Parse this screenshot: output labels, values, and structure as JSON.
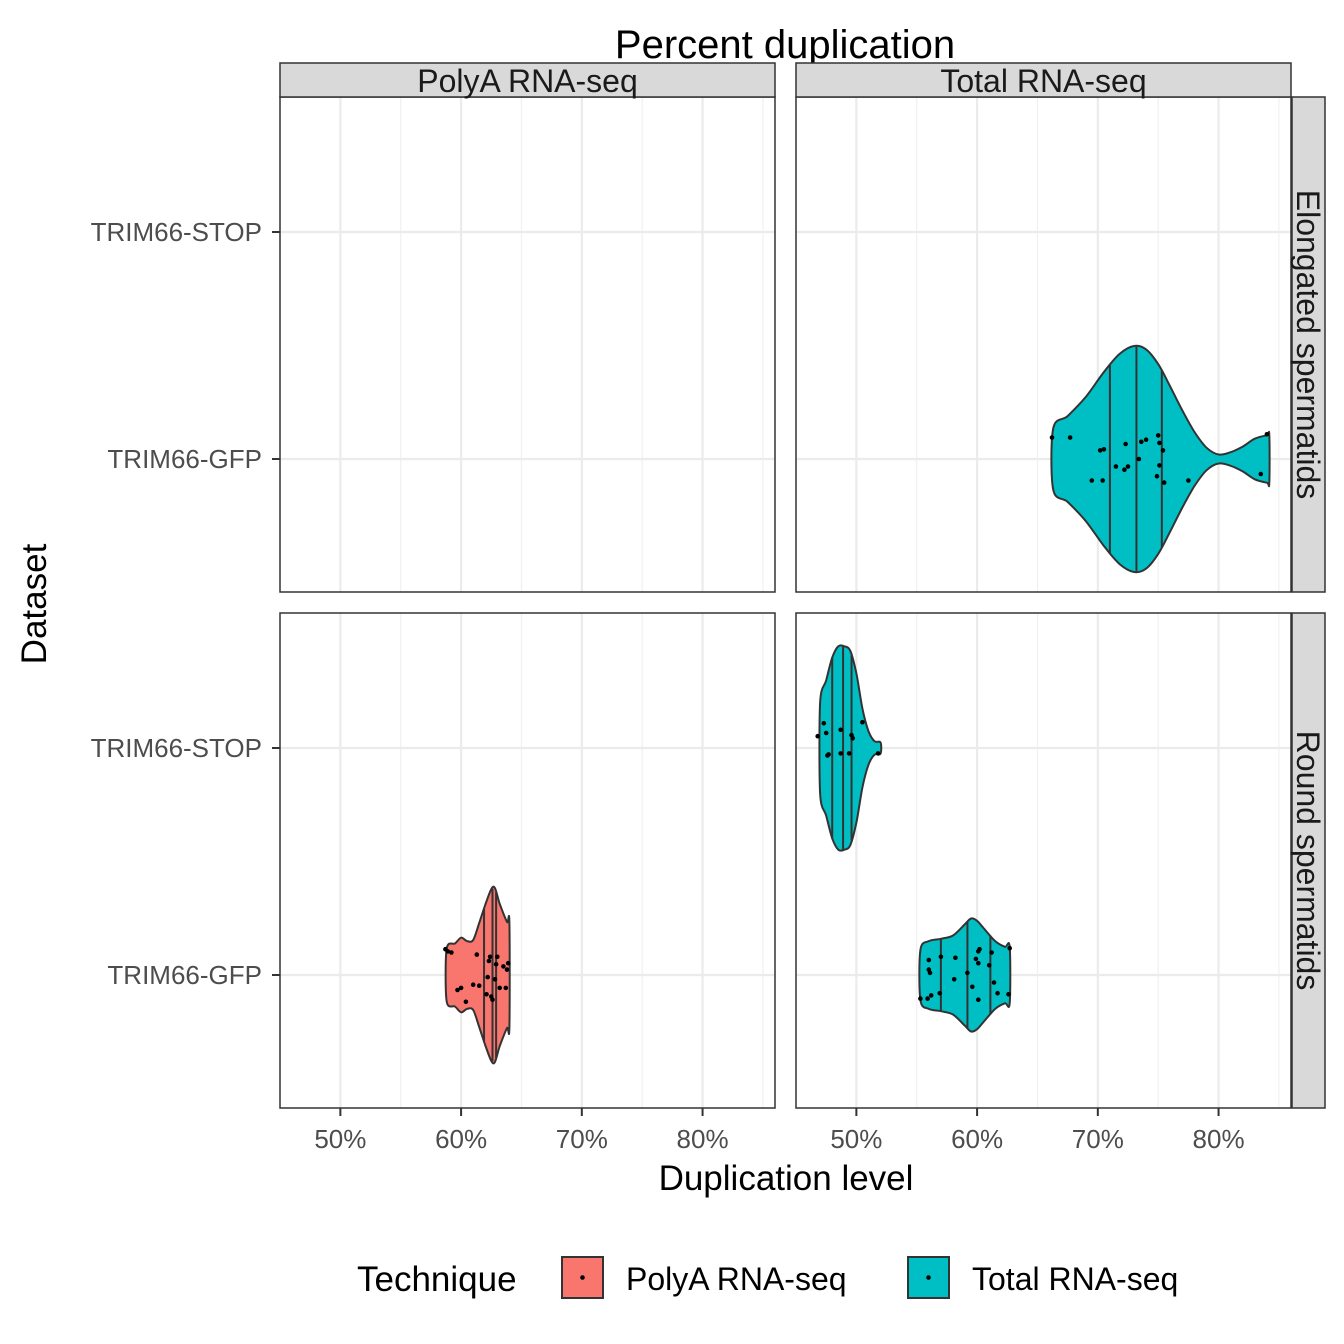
{
  "chart_data": {
    "type": "violin",
    "title": "Percent duplication",
    "xlabel": "Duplication level",
    "ylabel": "Dataset",
    "x_format": "percent",
    "xlim": [
      45,
      86
    ],
    "x_ticks": [
      50,
      60,
      70,
      80
    ],
    "x_tick_labels": [
      "50%",
      "60%",
      "70%",
      "80%"
    ],
    "categories": [
      "TRIM66-GFP",
      "TRIM66-STOP"
    ],
    "facet_cols": [
      "PolyA RNA-seq",
      "Total RNA-seq"
    ],
    "facet_rows": [
      "Elongated spermatids",
      "Round spermatids"
    ],
    "legend": {
      "title": "Technique",
      "position": "bottom",
      "entries": [
        {
          "label": "PolyA RNA-seq",
          "color": "#F8766D"
        },
        {
          "label": "Total RNA-seq",
          "color": "#00BFC4"
        }
      ]
    },
    "grid": true,
    "series": [
      {
        "technique": "Total RNA-seq",
        "stage": "Elongated spermatids",
        "category": "TRIM66-GFP",
        "color": "#00BFC4",
        "quantiles": [
          71.0,
          73.2,
          75.3
        ],
        "profile": [
          [
            66.3,
            0.27
          ],
          [
            67.5,
            0.38
          ],
          [
            69.0,
            0.55
          ],
          [
            70.5,
            0.77
          ],
          [
            71.8,
            0.93
          ],
          [
            73.0,
            1.0
          ],
          [
            74.0,
            0.97
          ],
          [
            75.0,
            0.84
          ],
          [
            76.0,
            0.64
          ],
          [
            77.0,
            0.43
          ],
          [
            78.0,
            0.24
          ],
          [
            79.0,
            0.1
          ],
          [
            80.0,
            0.04
          ],
          [
            81.0,
            0.06
          ],
          [
            82.0,
            0.11
          ],
          [
            83.0,
            0.18
          ],
          [
            84.0,
            0.21
          ],
          [
            84.2,
            0.21
          ]
        ],
        "points": [
          [
            66.2,
            -0.2
          ],
          [
            67.7,
            -0.2
          ],
          [
            69.5,
            0.2
          ],
          [
            70.4,
            0.2
          ],
          [
            70.2,
            -0.08
          ],
          [
            70.5,
            -0.09
          ],
          [
            71.5,
            0.07
          ],
          [
            72.2,
            0.1
          ],
          [
            72.5,
            0.07
          ],
          [
            73.4,
            0.0
          ],
          [
            72.3,
            -0.14
          ],
          [
            73.6,
            -0.16
          ],
          [
            74.0,
            -0.18
          ],
          [
            74.9,
            0.16
          ],
          [
            75.1,
            0.06
          ],
          [
            75.5,
            0.22
          ],
          [
            77.5,
            0.2
          ],
          [
            75.4,
            -0.08
          ],
          [
            75.1,
            -0.15
          ],
          [
            75.0,
            -0.22
          ],
          [
            83.5,
            0.14
          ],
          [
            84.0,
            -0.23
          ]
        ]
      },
      {
        "technique": "Total RNA-seq",
        "stage": "Round spermatids",
        "category": "TRIM66-STOP",
        "color": "#00BFC4",
        "quantiles": [
          48.0,
          48.9,
          49.6
        ],
        "profile": [
          [
            47.0,
            0.4
          ],
          [
            47.5,
            0.6
          ],
          [
            48.0,
            0.8
          ],
          [
            48.5,
            0.9
          ],
          [
            49.0,
            0.9
          ],
          [
            49.5,
            0.86
          ],
          [
            50.0,
            0.66
          ],
          [
            50.5,
            0.35
          ],
          [
            51.0,
            0.15
          ],
          [
            51.5,
            0.06
          ],
          [
            52.0,
            0.05
          ]
        ],
        "points": [
          [
            46.8,
            -0.11
          ],
          [
            47.3,
            -0.23
          ],
          [
            47.5,
            -0.14
          ],
          [
            47.7,
            0.06
          ],
          [
            47.6,
            0.07
          ],
          [
            48.7,
            0.05
          ],
          [
            48.7,
            -0.17
          ],
          [
            49.4,
            0.05
          ],
          [
            49.7,
            -0.09
          ],
          [
            49.6,
            -0.12
          ],
          [
            50.5,
            -0.24
          ],
          [
            51.8,
            0.05
          ]
        ]
      },
      {
        "technique": "Total RNA-seq",
        "stage": "Round spermatids",
        "category": "TRIM66-GFP",
        "color": "#00BFC4",
        "quantiles": [
          57.0,
          59.2,
          61.1
        ],
        "profile": [
          [
            55.3,
            0.22
          ],
          [
            56.0,
            0.3
          ],
          [
            57.0,
            0.32
          ],
          [
            58.0,
            0.35
          ],
          [
            59.0,
            0.45
          ],
          [
            59.5,
            0.5
          ],
          [
            60.0,
            0.48
          ],
          [
            60.5,
            0.42
          ],
          [
            61.5,
            0.3
          ],
          [
            62.3,
            0.25
          ],
          [
            62.7,
            0.25
          ]
        ],
        "points": [
          [
            55.3,
            0.22
          ],
          [
            55.9,
            0.22
          ],
          [
            56.2,
            0.19
          ],
          [
            56.9,
            0.17
          ],
          [
            56.0,
            -0.05
          ],
          [
            56.1,
            -0.02
          ],
          [
            56.0,
            -0.14
          ],
          [
            57.0,
            -0.17
          ],
          [
            58.1,
            0.04
          ],
          [
            58.2,
            -0.16
          ],
          [
            59.2,
            -0.02
          ],
          [
            59.6,
            0.11
          ],
          [
            60.1,
            0.23
          ],
          [
            60.1,
            -0.11
          ],
          [
            59.9,
            -0.15
          ],
          [
            60.1,
            -0.22
          ],
          [
            60.2,
            -0.24
          ],
          [
            61.0,
            -0.09
          ],
          [
            61.2,
            -0.21
          ],
          [
            61.4,
            0.07
          ],
          [
            61.7,
            0.17
          ],
          [
            62.6,
            0.18
          ],
          [
            62.7,
            -0.25
          ]
        ]
      },
      {
        "technique": "PolyA RNA-seq",
        "stage": "Round spermatids",
        "category": "TRIM66-GFP",
        "color": "#F8766D",
        "quantiles": [
          61.9,
          62.6,
          62.9
        ],
        "profile": [
          [
            58.8,
            0.23
          ],
          [
            59.5,
            0.28
          ],
          [
            60.0,
            0.33
          ],
          [
            60.5,
            0.3
          ],
          [
            61.0,
            0.31
          ],
          [
            61.5,
            0.46
          ],
          [
            62.0,
            0.62
          ],
          [
            62.5,
            0.76
          ],
          [
            62.8,
            0.77
          ],
          [
            63.2,
            0.63
          ],
          [
            63.8,
            0.47
          ],
          [
            64.0,
            0.46
          ]
        ],
        "points": [
          [
            58.7,
            -0.24
          ],
          [
            58.9,
            -0.22
          ],
          [
            59.2,
            -0.21
          ],
          [
            59.7,
            0.14
          ],
          [
            60.0,
            0.12
          ],
          [
            60.4,
            0.25
          ],
          [
            61.0,
            0.09
          ],
          [
            61.3,
            -0.19
          ],
          [
            61.5,
            0.1
          ],
          [
            62.1,
            0.18
          ],
          [
            62.2,
            0.02
          ],
          [
            62.3,
            -0.13
          ],
          [
            62.4,
            -0.17
          ],
          [
            62.5,
            0.2
          ],
          [
            62.6,
            0.23
          ],
          [
            62.8,
            0.04
          ],
          [
            62.9,
            -0.1
          ],
          [
            63.0,
            -0.17
          ],
          [
            63.2,
            0.12
          ],
          [
            63.5,
            -0.08
          ],
          [
            63.7,
            0.12
          ],
          [
            63.8,
            -0.05
          ],
          [
            63.9,
            -0.11
          ]
        ]
      }
    ]
  }
}
